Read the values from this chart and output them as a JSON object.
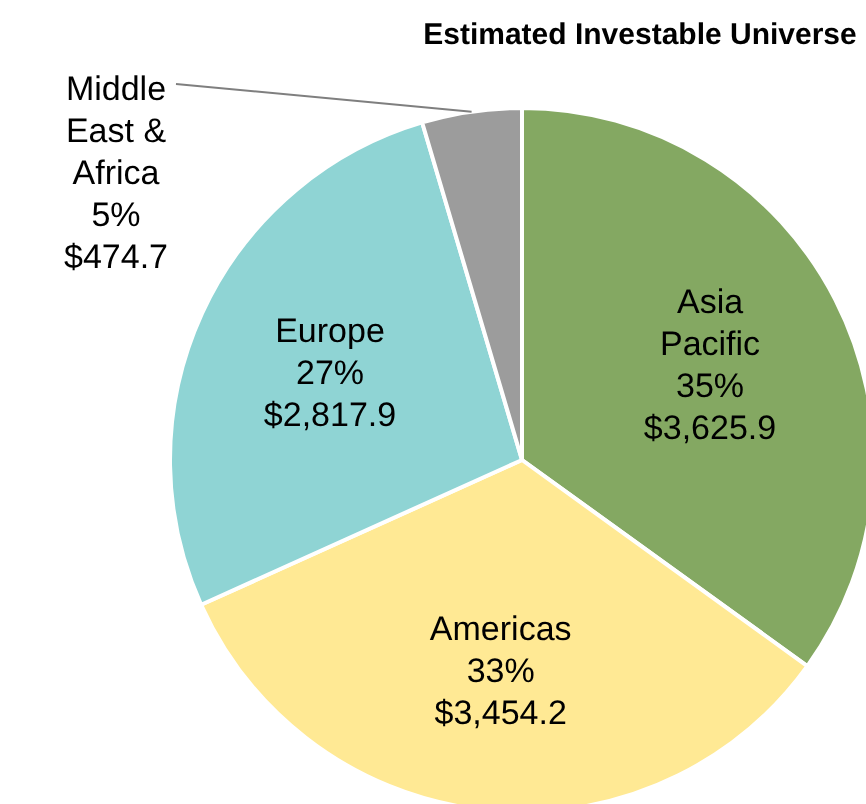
{
  "chart_data": {
    "type": "pie",
    "title": "Estimated Investable Universe",
    "categories": [
      "Asia Pacific",
      "Americas",
      "Europe",
      "Middle East & Africa"
    ],
    "values": [
      3625.9,
      3454.2,
      2817.9,
      474.7
    ],
    "colors": [
      "#84a862",
      "#ffe994",
      "#8fd4d4",
      "#9c9c9c"
    ],
    "value_labels": [
      "35%\n$3,625.9",
      "33%\n$3,454.2",
      "27%\n$2,817.9",
      "5%\n$474.7"
    ],
    "legend": false
  }
}
